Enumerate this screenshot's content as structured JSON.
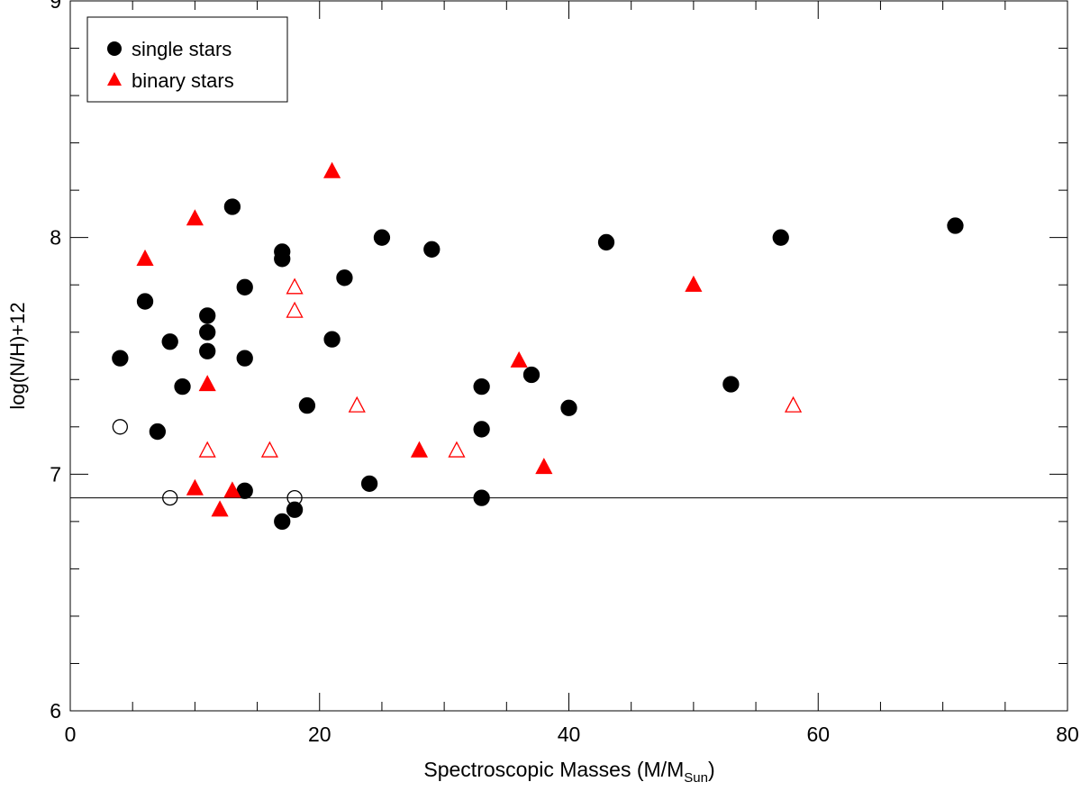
{
  "chart_data": {
    "type": "scatter",
    "title": "",
    "xlabel": "Spectroscopic Masses (M/M",
    "xlabel_sub": "Sun",
    "xlabel_close": ")",
    "ylabel": "log(N/H)+12",
    "xlim": [
      0,
      80
    ],
    "ylim": [
      6,
      9
    ],
    "xticks": [
      0,
      20,
      40,
      60,
      80
    ],
    "xminor_step": 5,
    "yticks": [
      6,
      7,
      8,
      9
    ],
    "yminor_step": 0.2,
    "grid": false,
    "legend": {
      "position": "top-left",
      "entries": [
        {
          "label": "single stars",
          "marker": "circle",
          "color": "#000000"
        },
        {
          "label": "binary stars",
          "marker": "triangle",
          "color": "#ff0000"
        }
      ]
    },
    "reference_line_y": 6.9,
    "series": [
      {
        "name": "single stars",
        "marker": "circle",
        "filled": true,
        "color": "#000000",
        "points": [
          [
            4,
            7.49
          ],
          [
            6,
            7.73
          ],
          [
            8,
            7.56
          ],
          [
            7,
            7.18
          ],
          [
            9,
            7.37
          ],
          [
            11,
            7.67
          ],
          [
            11,
            7.6
          ],
          [
            11,
            7.52
          ],
          [
            13,
            8.13
          ],
          [
            14,
            7.79
          ],
          [
            14,
            7.49
          ],
          [
            14,
            6.93
          ],
          [
            17,
            7.94
          ],
          [
            17,
            7.91
          ],
          [
            17,
            6.8
          ],
          [
            18,
            6.85
          ],
          [
            19,
            7.29
          ],
          [
            21,
            7.57
          ],
          [
            22,
            7.83
          ],
          [
            24,
            6.96
          ],
          [
            25,
            8.0
          ],
          [
            29,
            7.95
          ],
          [
            33,
            7.37
          ],
          [
            33,
            7.19
          ],
          [
            33,
            6.9
          ],
          [
            37,
            7.42
          ],
          [
            40,
            7.28
          ],
          [
            43,
            7.98
          ],
          [
            53,
            7.38
          ],
          [
            57,
            8.0
          ],
          [
            71,
            8.05
          ]
        ]
      },
      {
        "name": "single stars (upper limits)",
        "marker": "circle",
        "filled": false,
        "color": "#000000",
        "points": [
          [
            4,
            7.2
          ],
          [
            8,
            6.9
          ],
          [
            18,
            6.9
          ]
        ]
      },
      {
        "name": "binary stars",
        "marker": "triangle",
        "filled": true,
        "color": "#ff0000",
        "points": [
          [
            6,
            7.91
          ],
          [
            10,
            8.08
          ],
          [
            21,
            8.28
          ],
          [
            11,
            7.38
          ],
          [
            10,
            6.94
          ],
          [
            13,
            6.93
          ],
          [
            12,
            6.85
          ],
          [
            28,
            7.1
          ],
          [
            36,
            7.48
          ],
          [
            38,
            7.03
          ],
          [
            50,
            7.8
          ]
        ]
      },
      {
        "name": "binary stars (upper limits)",
        "marker": "triangle",
        "filled": false,
        "color": "#ff0000",
        "points": [
          [
            18,
            7.79
          ],
          [
            18,
            7.69
          ],
          [
            11,
            7.1
          ],
          [
            16,
            7.1
          ],
          [
            23,
            7.29
          ],
          [
            31,
            7.1
          ],
          [
            58,
            7.29
          ]
        ]
      }
    ]
  }
}
